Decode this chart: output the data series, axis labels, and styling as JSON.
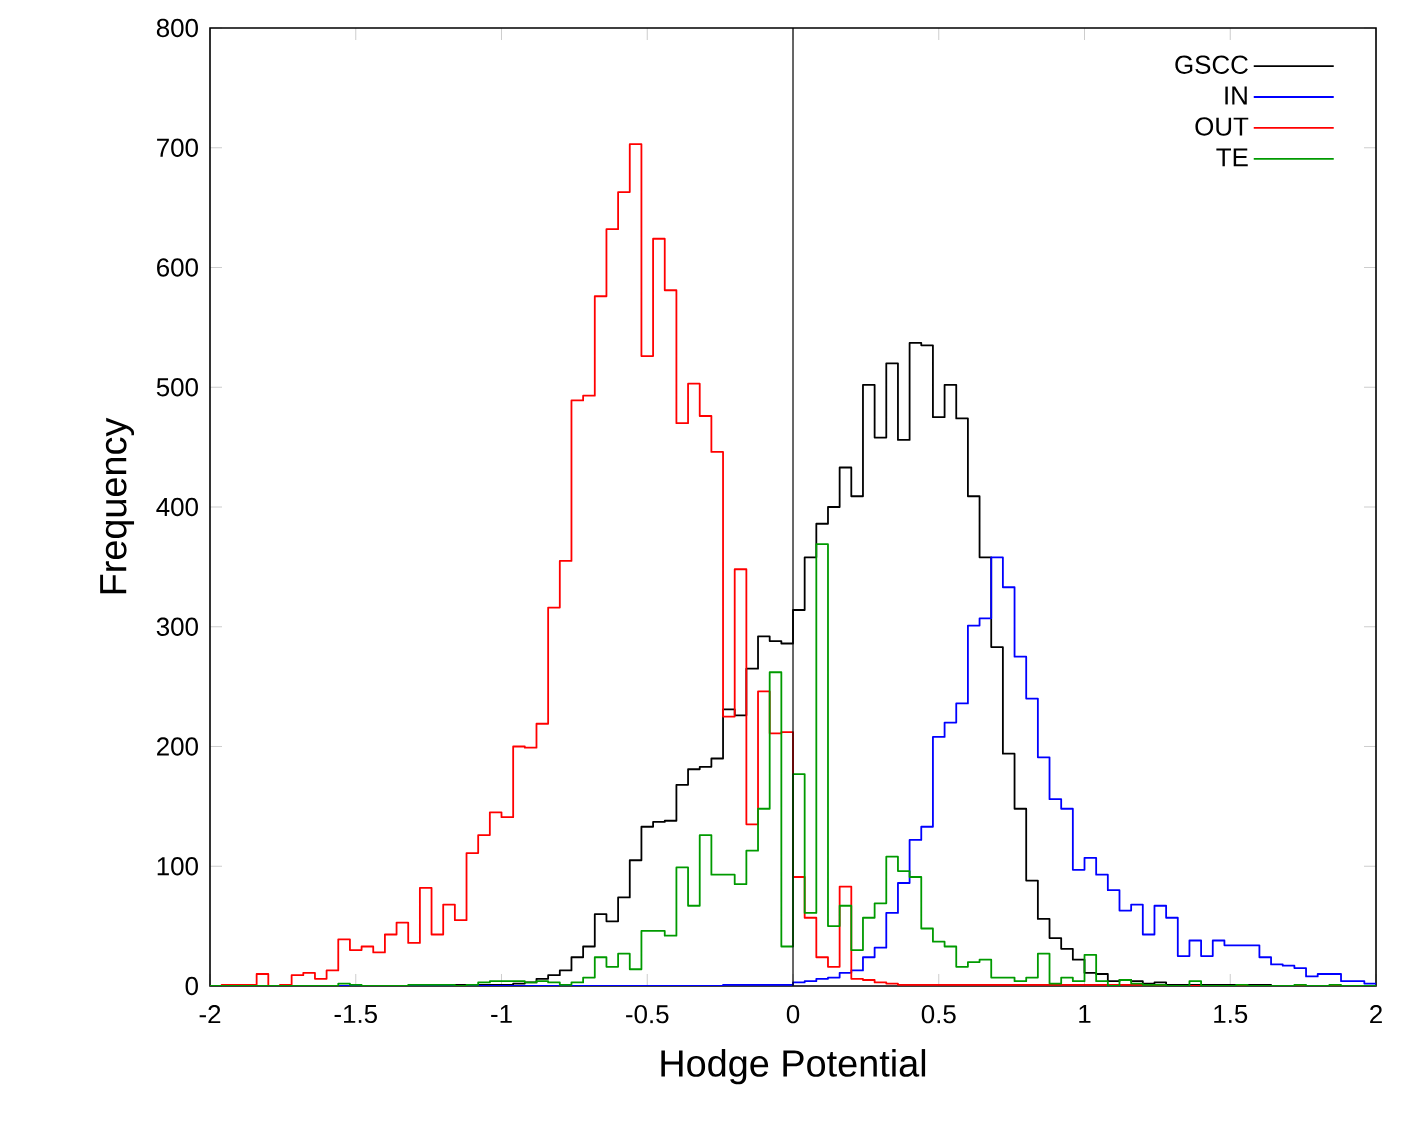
{
  "chart_data": {
    "type": "histogram",
    "xlabel": "Hodge Potential",
    "ylabel": "Frequency",
    "bins": [
      -2,
      -1.96,
      -1.92,
      -1.88,
      -1.84,
      -1.8,
      -1.76,
      -1.72,
      -1.68,
      -1.64,
      -1.6,
      -1.56,
      -1.52,
      -1.48,
      -1.44,
      -1.4,
      -1.36,
      -1.32,
      -1.28,
      -1.24,
      -1.2,
      -1.16,
      -1.12,
      -1.08,
      -1.04,
      -1,
      -0.96,
      -0.92,
      -0.88,
      -0.84,
      -0.8,
      -0.76,
      -0.72,
      -0.68,
      -0.64,
      -0.6,
      -0.56,
      -0.52,
      -0.48,
      -0.44,
      -0.4,
      -0.36,
      -0.32,
      -0.28,
      -0.24,
      -0.2,
      -0.16,
      -0.12,
      -0.08,
      -0.04,
      0,
      0.04,
      0.08,
      0.12,
      0.16,
      0.2,
      0.24,
      0.28,
      0.32,
      0.36,
      0.4,
      0.44,
      0.48,
      0.52,
      0.56,
      0.6,
      0.64,
      0.68,
      0.72,
      0.76,
      0.8,
      0.84,
      0.88,
      0.92,
      0.96,
      1,
      1.04,
      1.08,
      1.12,
      1.16,
      1.2,
      1.24,
      1.28,
      1.32,
      1.36,
      1.4,
      1.44,
      1.48,
      1.52,
      1.56,
      1.6,
      1.64,
      1.68,
      1.72,
      1.76,
      1.8,
      1.84,
      1.88,
      1.92,
      1.96,
      2
    ],
    "series": [
      {
        "name": "GSCC",
        "color": "#000000",
        "values": [
          0,
          0,
          0,
          0,
          0,
          0,
          0,
          0,
          0,
          0,
          0,
          0,
          0,
          0,
          0,
          0,
          0,
          0,
          0,
          0,
          1,
          1,
          1,
          1,
          1,
          1,
          2,
          3,
          6,
          9,
          13,
          24,
          33,
          60,
          54,
          74,
          105,
          133,
          137,
          138,
          168,
          181,
          183,
          190,
          231,
          226,
          265,
          292,
          288,
          286,
          314,
          358,
          386,
          400,
          433,
          409,
          502,
          458,
          520,
          456,
          537,
          535,
          475,
          502,
          474,
          409,
          358,
          283,
          194,
          148,
          88,
          56,
          40,
          31,
          22,
          11,
          10,
          4,
          5,
          4,
          2,
          3,
          1,
          1,
          1,
          1,
          1,
          1,
          1,
          1,
          1,
          0,
          0,
          0,
          0,
          0,
          0,
          0,
          0,
          0
        ]
      },
      {
        "name": "IN",
        "color": "#0000ff",
        "values": [
          0,
          0,
          0,
          0,
          0,
          0,
          0,
          0,
          0,
          0,
          0,
          0,
          0,
          0,
          0,
          0,
          0,
          0,
          0,
          0,
          0,
          0,
          0,
          0,
          0,
          0,
          0,
          0,
          0,
          0,
          0,
          0,
          0,
          0,
          0,
          0,
          0,
          0,
          0,
          0,
          0,
          0,
          0,
          0,
          1,
          1,
          1,
          1,
          1,
          1,
          3,
          4,
          6,
          7,
          11,
          13,
          24,
          32,
          61,
          86,
          122,
          133,
          208,
          220,
          236,
          301,
          307,
          358,
          333,
          275,
          240,
          191,
          156,
          148,
          97,
          107,
          93,
          80,
          63,
          68,
          43,
          67,
          57,
          25,
          38,
          25,
          38,
          34,
          34,
          34,
          24,
          18,
          17,
          15,
          8,
          10,
          10,
          4,
          4,
          2
        ]
      },
      {
        "name": "OUT",
        "color": "#ff0000",
        "values": [
          0,
          1,
          1,
          1,
          10,
          0,
          1,
          9,
          11,
          6,
          13,
          39,
          30,
          33,
          28,
          43,
          53,
          36,
          82,
          43,
          68,
          55,
          111,
          126,
          145,
          141,
          200,
          199,
          219,
          316,
          355,
          489,
          493,
          576,
          632,
          663,
          703,
          526,
          624,
          581,
          470,
          503,
          476,
          446,
          225,
          348,
          135,
          246,
          211,
          212,
          91,
          57,
          24,
          16,
          83,
          6,
          5,
          3,
          2,
          1,
          1,
          1,
          1,
          1,
          1,
          1,
          1,
          1,
          1,
          1,
          1,
          1,
          1,
          1,
          1,
          1,
          1,
          1,
          1,
          1,
          1,
          0,
          0,
          0,
          0,
          0,
          0,
          0,
          0,
          0,
          0,
          0,
          0,
          0,
          0,
          0,
          0,
          0,
          0,
          0
        ]
      },
      {
        "name": "TE",
        "color": "#009a00",
        "values": [
          0,
          0,
          0,
          0,
          0,
          0,
          0,
          0,
          0,
          0,
          0,
          2,
          1,
          0,
          0,
          0,
          0,
          1,
          1,
          1,
          1,
          0,
          1,
          3,
          4,
          4,
          4,
          3,
          4,
          3,
          1,
          3,
          7,
          24,
          16,
          27,
          14,
          46,
          46,
          42,
          99,
          67,
          126,
          93,
          93,
          85,
          113,
          148,
          262,
          33,
          177,
          61,
          369,
          50,
          67,
          30,
          57,
          69,
          108,
          96,
          91,
          48,
          37,
          33,
          16,
          20,
          22,
          7,
          7,
          4,
          7,
          27,
          2,
          7,
          4,
          26,
          4,
          0,
          5,
          2,
          1,
          1,
          0,
          0,
          4,
          0,
          0,
          0,
          1,
          0,
          0,
          0,
          0,
          1,
          0,
          0,
          1,
          0,
          0,
          0
        ]
      }
    ],
    "xlim": [
      -2,
      2
    ],
    "ylim": [
      0,
      800
    ],
    "xticks": [
      -2,
      -1.5,
      -1,
      -0.5,
      0,
      0.5,
      1,
      1.5,
      2
    ],
    "yticks": [
      0,
      100,
      200,
      300,
      400,
      500,
      600,
      700,
      800
    ],
    "ref_lines": [
      {
        "axis": "x",
        "value": 0,
        "color": "#000000"
      }
    ],
    "legend": "top right",
    "grid": false
  }
}
